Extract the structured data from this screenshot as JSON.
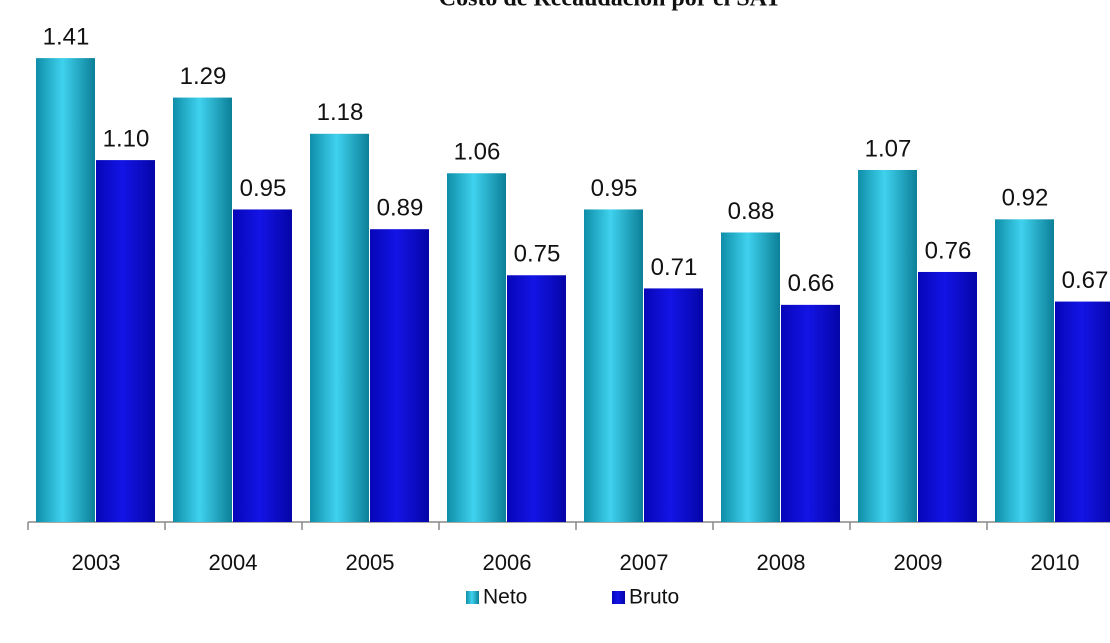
{
  "chart_data": {
    "type": "bar",
    "title": "Costo de Recaudación por el SAT",
    "categories": [
      "2003",
      "2004",
      "2005",
      "2006",
      "2007",
      "2008",
      "2009",
      "2010"
    ],
    "series": [
      {
        "name": "Neto",
        "color": "#1cb6d6",
        "values": [
          1.41,
          1.29,
          1.18,
          1.06,
          0.95,
          0.88,
          1.07,
          0.92
        ],
        "value_labels": [
          "1.41",
          "1.29",
          "1.18",
          "1.06",
          "0.95",
          "0.88",
          "1.07",
          "0.92"
        ]
      },
      {
        "name": "Bruto",
        "color": "#0a0ad6",
        "values": [
          1.1,
          0.95,
          0.89,
          0.75,
          0.71,
          0.66,
          0.76,
          0.67
        ],
        "value_labels": [
          "1.10",
          "0.95",
          "0.89",
          "0.75",
          "0.71",
          "0.66",
          "0.76",
          "0.67"
        ]
      }
    ],
    "ylim": [
      0,
      1.5
    ],
    "legend": "bottom"
  }
}
